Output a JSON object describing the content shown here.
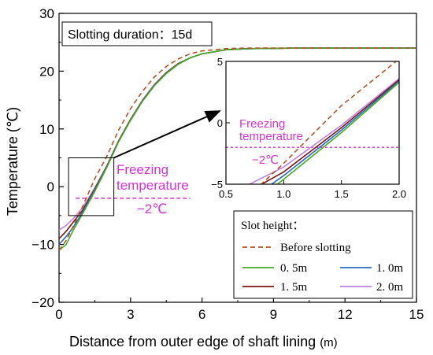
{
  "chart_data": {
    "type": "line",
    "xlabel": "Distance from outer edge of shaft lining",
    "xlabel_unit": "(m)",
    "ylabel": "Temperature (℃)",
    "xlim": [
      0,
      15
    ],
    "ylim": [
      -20,
      30
    ],
    "xticks": [
      "0",
      "3",
      "6",
      "9",
      "12",
      "15"
    ],
    "yticks": [
      "−20",
      "−10",
      "0",
      "10",
      "20",
      "30"
    ],
    "grid": false,
    "duration_label": "Slotting duration：15d",
    "freezing_label_line1": "Freezing",
    "freezing_label_line2": "temperature",
    "freezing_value": "−2℃",
    "freezing_temperature": -2,
    "legend": {
      "title": "Slot height：",
      "placement": "bottom-right",
      "entries": [
        "Before slotting",
        "0. 5m",
        "1. 0m",
        "1. 5m",
        "2. 0m"
      ]
    },
    "colors": {
      "before": "#b4532a",
      "h05": "#44aa22",
      "h10": "#2a68c4",
      "h15": "#7a1515",
      "h20": "#c080e0",
      "freezing": "#d633d6"
    },
    "series": [
      {
        "name": "Before slotting",
        "style": "dashed",
        "color": "#b4532a",
        "x": [
          0,
          0.3,
          0.6,
          1.0,
          1.5,
          2.0,
          2.5,
          3.0,
          3.5,
          4.0,
          4.5,
          5.0,
          5.5,
          6.0,
          7.0,
          8.0,
          10,
          12,
          15
        ],
        "y": [
          -11,
          -9.3,
          -6.8,
          -3.3,
          1.4,
          5.2,
          9.8,
          13.5,
          16.5,
          19,
          20.8,
          22.1,
          23,
          23.5,
          23.9,
          24,
          24,
          24,
          24
        ]
      },
      {
        "name": "0. 5m",
        "color": "#44aa22",
        "x": [
          0,
          0.3,
          0.6,
          1.0,
          1.5,
          2.0,
          2.5,
          3.0,
          3.5,
          4.0,
          4.5,
          5.0,
          5.5,
          6.0,
          7.0,
          8.0,
          10,
          12,
          15
        ],
        "y": [
          -11,
          -10,
          -7.5,
          -4.6,
          -0.8,
          3.3,
          7.8,
          11.5,
          14.8,
          17.5,
          19.6,
          21.2,
          22.3,
          23,
          23.7,
          23.9,
          24,
          24,
          24
        ]
      },
      {
        "name": "1. 0m",
        "color": "#2a68c4",
        "x": [
          0,
          0.3,
          0.6,
          1.0,
          1.5,
          2.0,
          2.5,
          3.0,
          3.5,
          4.0,
          4.5,
          5.0,
          5.5,
          6.0,
          7.0,
          8.0,
          10,
          12,
          15
        ],
        "y": [
          -10,
          -8.6,
          -7,
          -4.3,
          -0.6,
          3.4,
          7.8,
          11.5,
          14.8,
          17.5,
          19.6,
          21.2,
          22.3,
          23,
          23.7,
          23.9,
          24,
          24,
          24
        ]
      },
      {
        "name": "1. 5m",
        "color": "#7a1515",
        "x": [
          0,
          0.3,
          0.6,
          1.0,
          1.5,
          2.0,
          2.5,
          3.0,
          3.5,
          4.0,
          4.5,
          5.0,
          5.5,
          6.0,
          7.0,
          8.0,
          10,
          12,
          15
        ],
        "y": [
          -9,
          -7.7,
          -6.1,
          -4,
          -0.4,
          3.5,
          7.9,
          11.6,
          14.9,
          17.6,
          19.7,
          21.3,
          22.3,
          23,
          23.7,
          23.9,
          24,
          24,
          24
        ]
      },
      {
        "name": "2. 0m",
        "color": "#c080e0",
        "x": [
          0,
          0.3,
          0.6,
          1.0,
          1.5,
          2.0,
          2.5,
          3.0,
          3.5,
          4.0,
          4.5,
          5.0,
          5.5,
          6.0,
          7.0,
          8.0,
          10,
          12,
          15
        ],
        "y": [
          -7.5,
          -6.7,
          -5.5,
          -3.6,
          -0.2,
          3.6,
          8,
          11.7,
          15,
          17.7,
          19.8,
          21.3,
          22.3,
          23,
          23.7,
          23.9,
          24,
          24,
          24
        ]
      }
    ],
    "inset": {
      "xlim": [
        0.5,
        2.0
      ],
      "ylim": [
        -5,
        5
      ],
      "xticks": [
        "0.5",
        "1.0",
        "1.5",
        "2.0"
      ],
      "yticks": [
        "−5",
        "0",
        "5"
      ],
      "freezing_label_line1": "Freezing",
      "freezing_label_line2": "temperature",
      "freezing_value": "−2℃",
      "zoom_box": {
        "x": [
          0.4,
          2.3
        ],
        "y": [
          -5,
          5
        ]
      }
    }
  }
}
